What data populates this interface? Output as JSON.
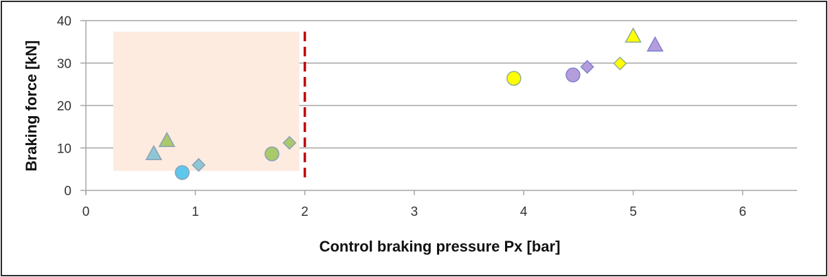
{
  "chart_data": {
    "type": "scatter",
    "title": "",
    "xlabel": "Control braking pressure Px [bar]",
    "ylabel": "Braking force [kN]",
    "xlim": [
      0,
      6.5
    ],
    "ylim": [
      0,
      40
    ],
    "x_ticks": [
      "0",
      "1",
      "2",
      "3",
      "4",
      "5",
      "6"
    ],
    "y_ticks": [
      "0",
      "10",
      "20",
      "30",
      "40"
    ],
    "grid": "horizontal",
    "legend": "none",
    "annotations": {
      "shaded_region": {
        "x": [
          0.25,
          1.95
        ],
        "y": [
          4.6,
          37.4
        ],
        "color": "#fdebe0"
      },
      "threshold_line": {
        "x": 2.0,
        "y": [
          3,
          37.4
        ],
        "style": "dashed",
        "color": "#c00000"
      }
    },
    "series": [
      {
        "name": "blue-gray triangle",
        "marker": "triangle",
        "color": "#8fc6d3",
        "points": [
          [
            0.62,
            8.7
          ]
        ]
      },
      {
        "name": "green triangle",
        "marker": "triangle",
        "color": "#a9c96b",
        "points": [
          [
            0.74,
            11.8
          ]
        ]
      },
      {
        "name": "blue circle",
        "marker": "circle",
        "color": "#5ec8ec",
        "points": [
          [
            0.88,
            4.2
          ]
        ]
      },
      {
        "name": "blue-gray diamond",
        "marker": "diamond",
        "color": "#8fc6d3",
        "points": [
          [
            1.03,
            6.0
          ]
        ]
      },
      {
        "name": "green circle",
        "marker": "circle",
        "color": "#a9c96b",
        "points": [
          [
            1.7,
            8.6
          ]
        ]
      },
      {
        "name": "green diamond",
        "marker": "diamond",
        "color": "#a9c96b",
        "points": [
          [
            1.86,
            11.2
          ]
        ]
      },
      {
        "name": "yellow circle",
        "marker": "circle",
        "color": "#ffff00",
        "points": [
          [
            3.91,
            26.4
          ]
        ]
      },
      {
        "name": "purple circle",
        "marker": "circle",
        "color": "#b39ddb",
        "points": [
          [
            4.45,
            27.2
          ]
        ]
      },
      {
        "name": "purple diamond",
        "marker": "diamond",
        "color": "#b39ddb",
        "points": [
          [
            4.58,
            29.1
          ]
        ]
      },
      {
        "name": "yellow diamond",
        "marker": "diamond",
        "color": "#ffff00",
        "points": [
          [
            4.88,
            29.9
          ]
        ]
      },
      {
        "name": "yellow triangle",
        "marker": "triangle",
        "color": "#ffff00",
        "points": [
          [
            5.0,
            36.4
          ]
        ]
      },
      {
        "name": "purple triangle",
        "marker": "triangle",
        "color": "#b39ddb",
        "points": [
          [
            5.2,
            34.3
          ]
        ]
      }
    ]
  }
}
